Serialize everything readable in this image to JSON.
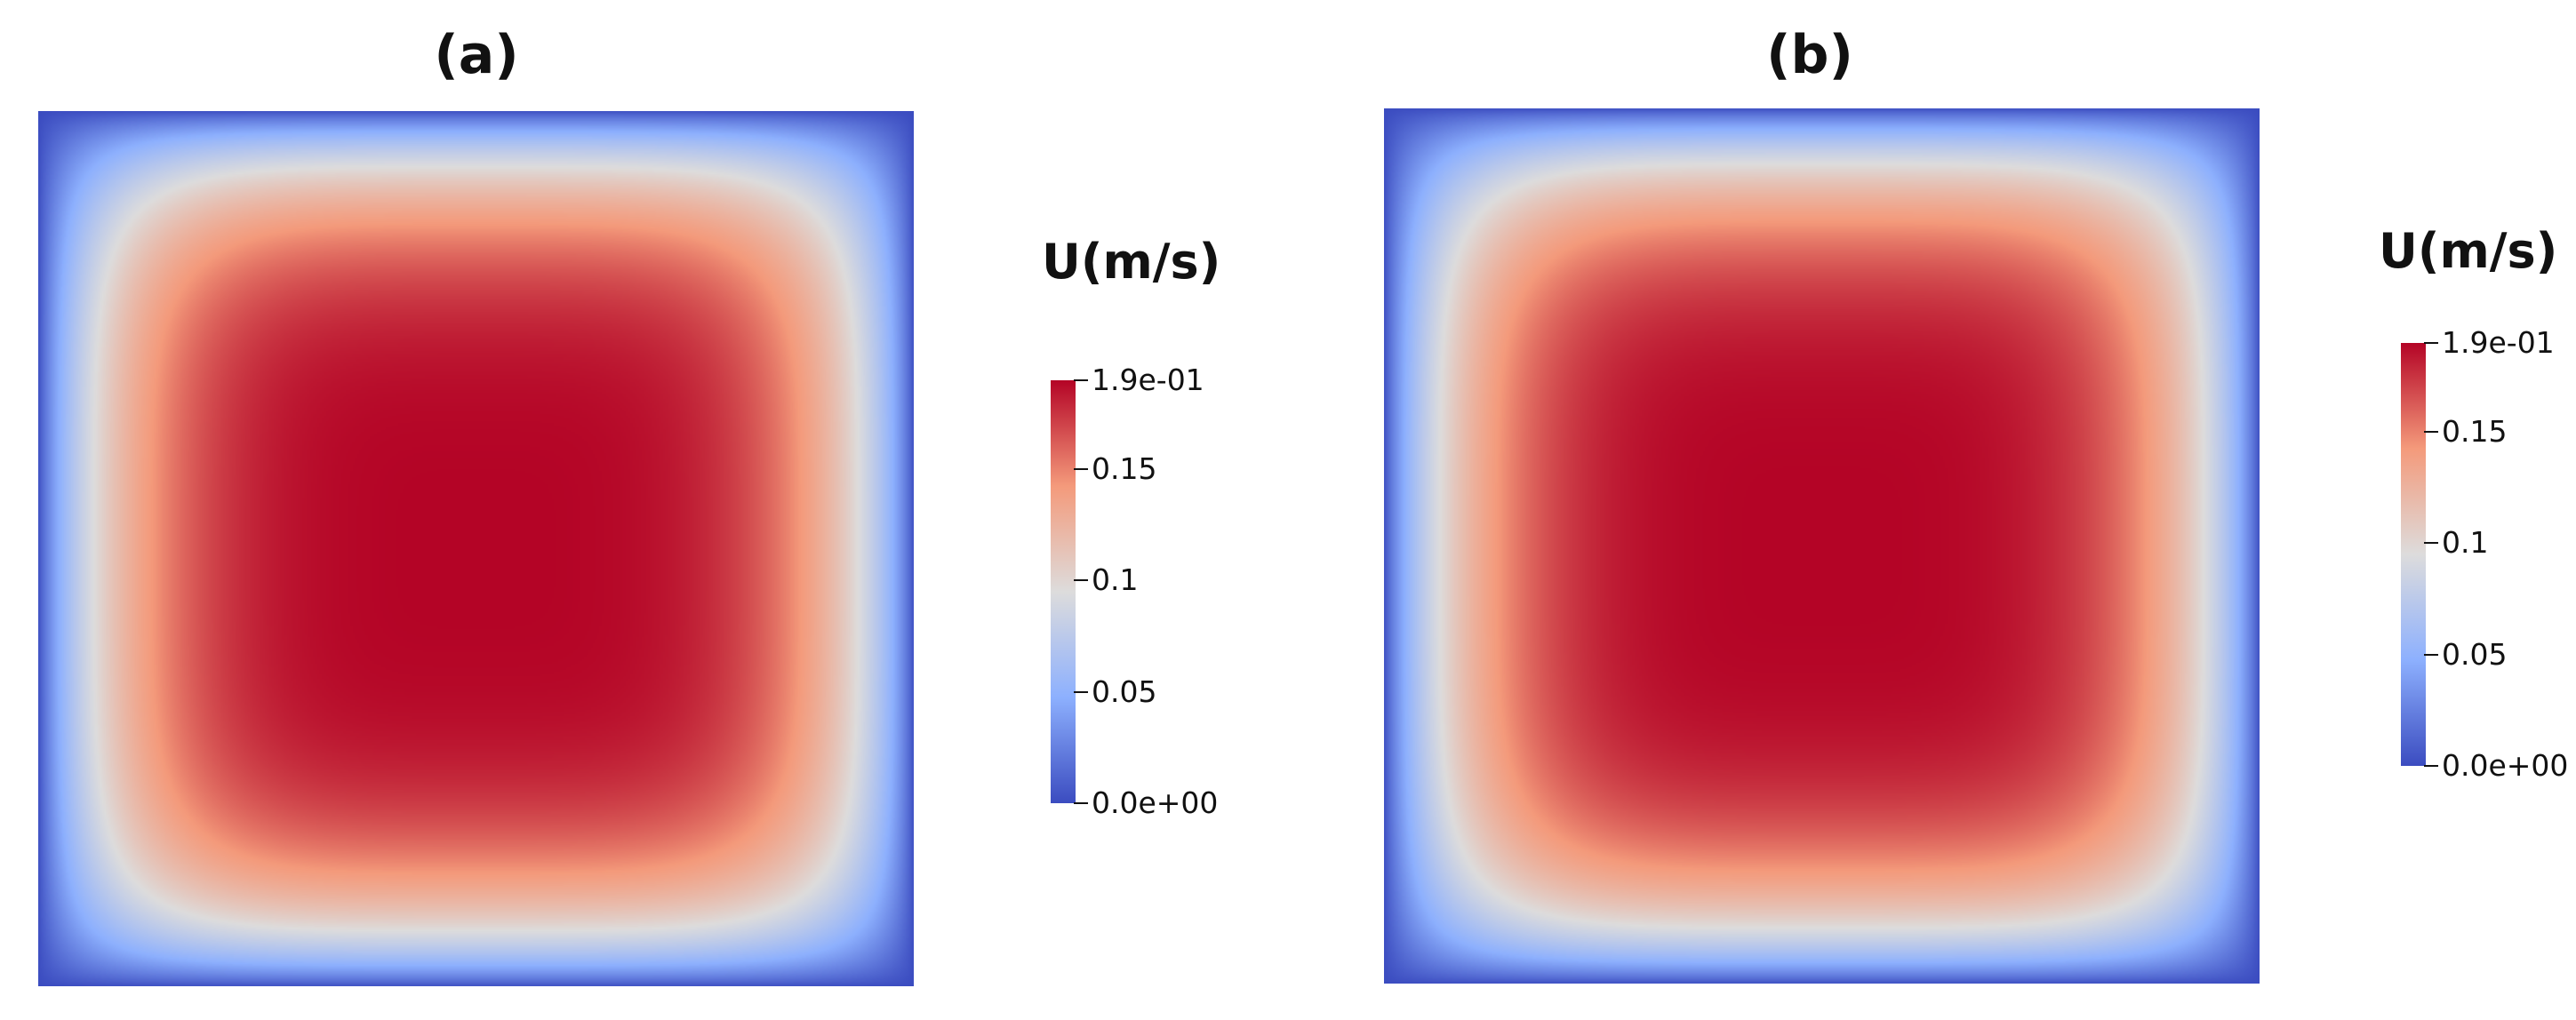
{
  "chart_data": [
    {
      "type": "heatmap",
      "title": "(a)",
      "colorbar": {
        "label": "U(m/s)",
        "range": [
          0,
          0.19
        ],
        "tick_values": [
          0.19,
          0.15,
          0.1,
          0.05,
          0
        ],
        "tick_labels": [
          "1.9e-01",
          "0.15",
          "0.1",
          "0.05",
          "0.0e+00"
        ],
        "colormap": [
          "#3b4cc0",
          "#8db0fe",
          "#dddcdc",
          "#f49a7b",
          "#b40426"
        ]
      },
      "field": {
        "min": 0,
        "max": 0.19,
        "max_location": "center",
        "boundary_value": 0
      }
    },
    {
      "type": "heatmap",
      "title": "(b)",
      "colorbar": {
        "label": "U(m/s)",
        "range": [
          0,
          0.19
        ],
        "tick_values": [
          0.19,
          0.15,
          0.1,
          0.05,
          0
        ],
        "tick_labels": [
          "1.9e-01",
          "0.15",
          "0.1",
          "0.05",
          "0.0e+00"
        ],
        "colormap": [
          "#3b4cc0",
          "#8db0fe",
          "#dddcdc",
          "#f49a7b",
          "#b40426"
        ]
      },
      "field": {
        "min": 0,
        "max": 0.19,
        "max_location": "center",
        "boundary_value": 0
      }
    }
  ]
}
